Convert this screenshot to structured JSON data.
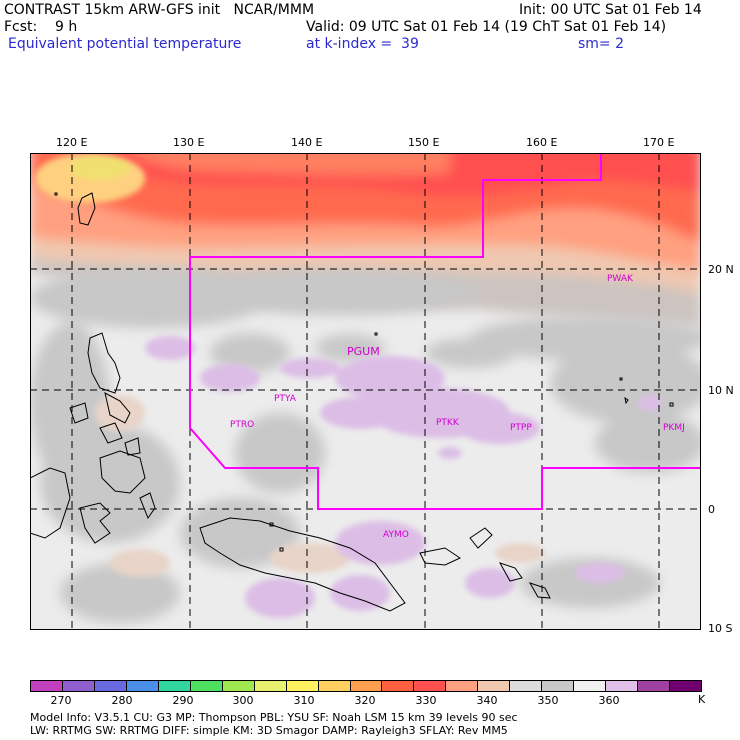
{
  "header": {
    "line1_left": "CONTRAST 15km ARW-GFS init   NCAR/MMM",
    "line1_right": "Init: 00 UTC Sat 01 Feb 14",
    "line2_left": "Fcst:    9 h",
    "line2_right": "Valid: 09 UTC Sat 01 Feb 14 (19 ChT Sat 01 Feb 14)",
    "field_name": "Equivalent potential temperature",
    "level": "at k-index =  39",
    "smoothing": "sm= 2"
  },
  "map": {
    "lon_labels": [
      "120 E",
      "130 E",
      "140 E",
      "150 E",
      "160 E",
      "170 E"
    ],
    "lat_labels": [
      "20 N",
      "10 N",
      "0",
      "10 S"
    ],
    "stations": [
      {
        "id": "PWAK"
      },
      {
        "id": "PGUM"
      },
      {
        "id": "PTYA"
      },
      {
        "id": "PTRO"
      },
      {
        "id": "PTKK"
      },
      {
        "id": "PTPP"
      },
      {
        "id": "PKMJ"
      },
      {
        "id": "AYMO"
      }
    ],
    "boundary_color": "#ff00ff"
  },
  "colorbar": {
    "labels": [
      "270",
      "280",
      "290",
      "300",
      "310",
      "320",
      "330",
      "340",
      "350",
      "360"
    ],
    "unit": "K",
    "colors": [
      "#c040c0",
      "#9060d0",
      "#6a6ae0",
      "#4a90e8",
      "#30d8a0",
      "#50e060",
      "#a0e850",
      "#e8f070",
      "#fff060",
      "#ffd060",
      "#ffa050",
      "#ff6040",
      "#ff5050",
      "#ffa080",
      "#f0c8b0",
      "#dcdcdc",
      "#c8c8c8",
      "#f0f0f0",
      "#e0c0e8",
      "#a040a0",
      "#700070"
    ]
  },
  "footer": {
    "line1": "Model Info: V3.5.1     CU: G3       MP: Thompson     PBL: YSU        SF: Noah LSM     15 km    39 levels    90 sec",
    "line2": "                LW: RRTMG    SW: RRTMG   DIFF: simple KM: 3D Smagor DAMP: Rayleigh3   SFLAY: Rev MM5"
  }
}
